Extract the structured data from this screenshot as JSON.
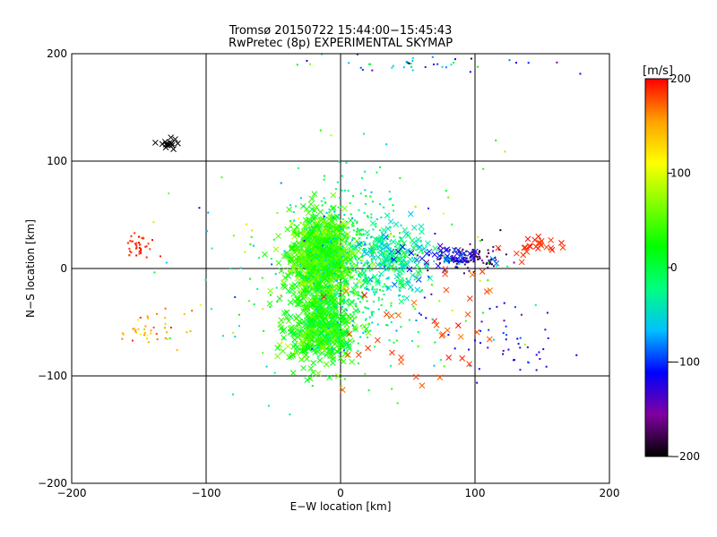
{
  "chart_data": {
    "type": "scatter",
    "title": "Tromsø 20150722 15:44:00−15:45:43",
    "subtitle": "RwPretec (8p) EXPERIMENTAL SKYMAP",
    "xlabel": "E−W location [km]",
    "ylabel": "N−S location [km]",
    "xlim": [
      -200,
      200
    ],
    "ylim": [
      -200,
      200
    ],
    "xticks": [
      -200,
      -100,
      0,
      100,
      200
    ],
    "yticks": [
      -200,
      -100,
      0,
      100,
      200
    ],
    "xtick_labels": [
      "−200",
      "−100",
      "0",
      "100",
      "200"
    ],
    "ytick_labels": [
      "−200",
      "−100",
      "0",
      "100",
      "200"
    ],
    "grid": true,
    "colorbar": {
      "label": "[m/s]",
      "range": [
        -200,
        200
      ],
      "ticks": [
        200,
        100,
        0,
        -100,
        -200
      ],
      "tick_labels": [
        "200",
        "100",
        "0",
        "−100",
        "−200"
      ],
      "stops": [
        "#000000",
        "#8000a0",
        "#0000ff",
        "#00c0ff",
        "#00ff80",
        "#00ff00",
        "#80ff00",
        "#ffff00",
        "#ffa000",
        "#ff0000"
      ]
    },
    "colors": {
      "axes": "#000000",
      "background": "#ffffff"
    },
    "markers": [
      "cross",
      "dot"
    ],
    "clusters": [
      {
        "center": [
          -15,
          10
        ],
        "spread": [
          22,
          40
        ],
        "n": 900,
        "value": 40,
        "value_spread": 40,
        "marker": "cross"
      },
      {
        "center": [
          -15,
          -55
        ],
        "spread": [
          25,
          35
        ],
        "n": 450,
        "value": 30,
        "value_spread": 40,
        "marker": "cross"
      },
      {
        "center": [
          10,
          0
        ],
        "spread": [
          40,
          70
        ],
        "n": 500,
        "value": -20,
        "value_spread": 60,
        "marker": "dot"
      },
      {
        "center": [
          40,
          10
        ],
        "spread": [
          30,
          30
        ],
        "n": 150,
        "value": -30,
        "value_spread": 60,
        "marker": "cross"
      },
      {
        "center": [
          -150,
          20
        ],
        "spread": [
          10,
          10
        ],
        "n": 40,
        "value": 190,
        "value_spread": 10,
        "marker": "dot"
      },
      {
        "center": [
          -140,
          -55
        ],
        "spread": [
          25,
          15
        ],
        "n": 40,
        "value": 150,
        "value_spread": 40,
        "marker": "dot"
      },
      {
        "center": [
          -128,
          115
        ],
        "spread": [
          8,
          6
        ],
        "n": 15,
        "value": -200,
        "value_spread": 0,
        "marker": "cross"
      },
      {
        "center": [
          95,
          10
        ],
        "spread": [
          25,
          12
        ],
        "n": 110,
        "value": -180,
        "value_spread": 30,
        "marker": "dot"
      },
      {
        "center": [
          80,
          12
        ],
        "spread": [
          30,
          10
        ],
        "n": 40,
        "value": -110,
        "value_spread": 40,
        "marker": "cross"
      },
      {
        "center": [
          140,
          20
        ],
        "spread": [
          25,
          10
        ],
        "n": 25,
        "value": 190,
        "value_spread": 10,
        "marker": "cross"
      },
      {
        "center": [
          120,
          -70
        ],
        "spread": [
          50,
          40
        ],
        "n": 50,
        "value": -120,
        "value_spread": 40,
        "marker": "dot"
      },
      {
        "center": [
          60,
          -60
        ],
        "spread": [
          60,
          60
        ],
        "n": 40,
        "value": 180,
        "value_spread": 20,
        "marker": "cross"
      },
      {
        "center": [
          0,
          0
        ],
        "spread": [
          120,
          100
        ],
        "n": 200,
        "value": 0,
        "value_spread": 120,
        "marker": "dot"
      },
      {
        "center": [
          60,
          190
        ],
        "spread": [
          100,
          10
        ],
        "n": 40,
        "value": -50,
        "value_spread": 120,
        "marker": "dot"
      }
    ]
  }
}
